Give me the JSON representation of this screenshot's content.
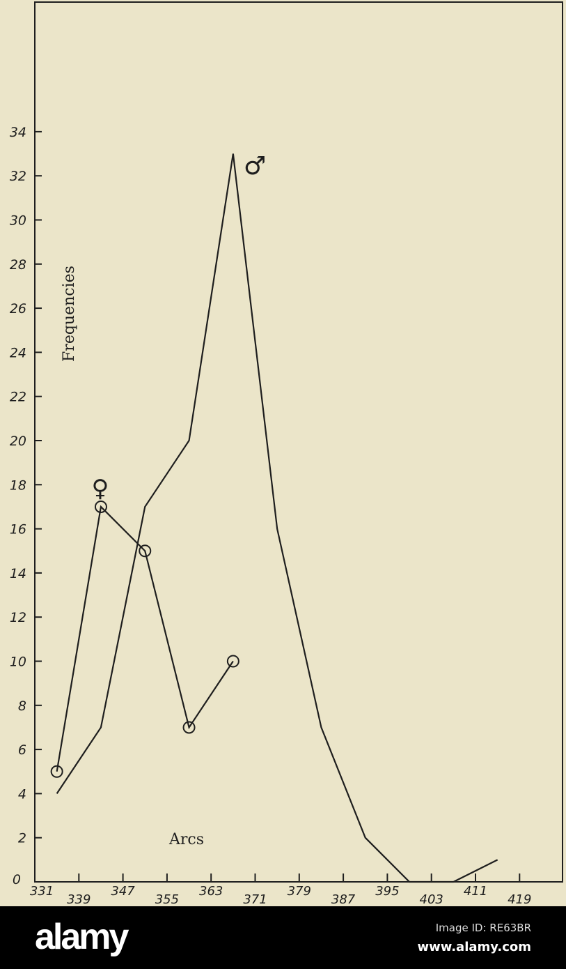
{
  "chart_data": {
    "type": "line",
    "title": "",
    "xlabel": "Arcs",
    "ylabel": "Frequencies",
    "x_tick_labels": [
      "331",
      "339",
      "347",
      "355",
      "363",
      "371",
      "379",
      "387",
      "395",
      "403",
      "411",
      "419"
    ],
    "y_tick_labels": [
      "0",
      "2",
      "4",
      "6",
      "8",
      "10",
      "12",
      "14",
      "16",
      "18",
      "20",
      "22",
      "24",
      "26",
      "28",
      "30",
      "32",
      "34"
    ],
    "xlim": [
      331,
      427
    ],
    "ylim": [
      0,
      40
    ],
    "grid": false,
    "series": [
      {
        "name": "♂",
        "marker": "none",
        "x": [
          335,
          343,
          351,
          359,
          367,
          375,
          383,
          391,
          399,
          407,
          415
        ],
        "values": [
          4,
          7,
          17,
          20,
          33,
          16,
          7,
          2,
          0,
          0,
          1
        ]
      },
      {
        "name": "♀",
        "marker": "circle",
        "x": [
          335,
          343,
          351,
          359,
          367
        ],
        "values": [
          5,
          17,
          15,
          7,
          10
        ]
      }
    ],
    "colors": {
      "background": "#ebe5c9",
      "ink": "#1e1e1e"
    }
  },
  "watermark": {
    "logo": "alamy",
    "image_id": "Image ID: RE63BR",
    "url": "www.alamy.com"
  }
}
